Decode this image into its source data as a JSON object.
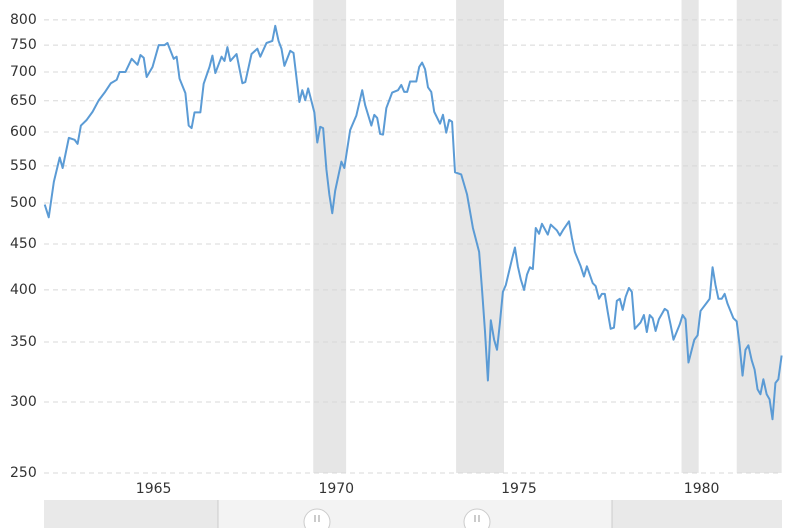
{
  "chart_data": {
    "type": "line",
    "log_y": true,
    "grid": true,
    "xlim": [
      1962.0,
      1982.2
    ],
    "xticks": [
      1965,
      1970,
      1975,
      1980
    ],
    "ylim": [
      250,
      842
    ],
    "yticks": [
      250,
      300,
      350,
      400,
      450,
      500,
      550,
      600,
      650,
      700,
      750,
      800
    ],
    "recession_color": "#e6e6e6",
    "recessions": [
      [
        1969.37,
        1970.27
      ],
      [
        1973.28,
        1974.59
      ],
      [
        1979.45,
        1979.92
      ],
      [
        1980.96,
        1982.19
      ]
    ],
    "series": [
      {
        "color": "#5b9bd5",
        "x": [
          1962.02,
          1962.13,
          1962.27,
          1962.43,
          1962.51,
          1962.68,
          1962.84,
          1962.92,
          1963.01,
          1963.17,
          1963.33,
          1963.5,
          1963.66,
          1963.83,
          1963.99,
          1964.07,
          1964.23,
          1964.4,
          1964.56,
          1964.64,
          1964.73,
          1964.81,
          1964.97,
          1965.14,
          1965.3,
          1965.38,
          1965.55,
          1965.63,
          1965.71,
          1965.87,
          1965.96,
          1966.04,
          1966.12,
          1966.28,
          1966.37,
          1966.53,
          1966.61,
          1966.69,
          1966.86,
          1966.94,
          1967.02,
          1967.1,
          1967.27,
          1967.43,
          1967.51,
          1967.68,
          1967.84,
          1967.92,
          1968.09,
          1968.25,
          1968.33,
          1968.42,
          1968.5,
          1968.58,
          1968.74,
          1968.83,
          1968.99,
          1969.07,
          1969.15,
          1969.23,
          1969.4,
          1969.48,
          1969.56,
          1969.64,
          1969.73,
          1969.81,
          1969.89,
          1969.97,
          1970.14,
          1970.22,
          1970.38,
          1970.55,
          1970.71,
          1970.79,
          1970.96,
          1971.04,
          1971.12,
          1971.2,
          1971.28,
          1971.37,
          1971.53,
          1971.69,
          1971.78,
          1971.86,
          1971.94,
          1972.02,
          1972.19,
          1972.27,
          1972.35,
          1972.43,
          1972.51,
          1972.6,
          1972.68,
          1972.84,
          1972.92,
          1973.01,
          1973.09,
          1973.17,
          1973.25,
          1973.42,
          1973.58,
          1973.74,
          1973.91,
          1973.99,
          1974.07,
          1974.15,
          1974.23,
          1974.32,
          1974.4,
          1974.48,
          1974.56,
          1974.64,
          1974.81,
          1974.89,
          1974.97,
          1975.05,
          1975.14,
          1975.22,
          1975.3,
          1975.38,
          1975.46,
          1975.55,
          1975.63,
          1975.79,
          1975.87,
          1976.04,
          1976.12,
          1976.2,
          1976.37,
          1976.45,
          1976.53,
          1976.69,
          1976.78,
          1976.86,
          1977.02,
          1977.1,
          1977.19,
          1977.27,
          1977.35,
          1977.43,
          1977.51,
          1977.6,
          1977.68,
          1977.76,
          1977.84,
          1977.92,
          1978.01,
          1978.09,
          1978.17,
          1978.33,
          1978.42,
          1978.5,
          1978.58,
          1978.66,
          1978.74,
          1978.83,
          1978.99,
          1979.07,
          1979.15,
          1979.23,
          1979.4,
          1979.48,
          1979.56,
          1979.64,
          1979.8,
          1979.89,
          1979.97,
          1980.14,
          1980.22,
          1980.3,
          1980.38,
          1980.46,
          1980.55,
          1980.63,
          1980.71,
          1980.87,
          1980.96,
          1981.04,
          1981.12,
          1981.2,
          1981.28,
          1981.37,
          1981.45,
          1981.53,
          1981.61,
          1981.69,
          1981.78,
          1981.86,
          1981.94,
          1982.02,
          1982.1,
          1982.19
        ],
        "values": [
          498,
          482,
          528,
          562,
          547,
          591,
          588,
          582,
          610,
          619,
          632,
          651,
          664,
          680,
          686,
          700,
          700,
          724,
          713,
          731,
          726,
          691,
          709,
          750,
          750,
          754,
          724,
          728,
          688,
          663,
          610,
          606,
          631,
          631,
          679,
          709,
          730,
          698,
          728,
          720,
          746,
          720,
          733,
          680,
          682,
          733,
          743,
          728,
          754,
          758,
          788,
          758,
          743,
          711,
          739,
          735,
          648,
          668,
          651,
          671,
          631,
          584,
          608,
          606,
          545,
          511,
          487,
          516,
          556,
          547,
          603,
          626,
          668,
          643,
          610,
          627,
          622,
          597,
          596,
          638,
          664,
          668,
          677,
          665,
          665,
          683,
          683,
          709,
          717,
          705,
          673,
          665,
          632,
          613,
          627,
          599,
          619,
          616,
          541,
          538,
          511,
          469,
          441,
          400,
          360,
          317,
          370,
          352,
          343,
          368,
          398,
          405,
          433,
          446,
          425,
          411,
          400,
          416,
          424,
          422,
          469,
          462,
          474,
          461,
          473,
          466,
          460,
          466,
          477,
          457,
          441,
          425,
          414,
          425,
          407,
          404,
          391,
          396,
          396,
          378,
          362,
          363,
          389,
          391,
          380,
          393,
          402,
          398,
          362,
          368,
          375,
          359,
          375,
          372,
          360,
          371,
          381,
          379,
          366,
          352,
          366,
          375,
          371,
          332,
          352,
          356,
          379,
          387,
          391,
          424,
          405,
          391,
          391,
          396,
          386,
          372,
          369,
          347,
          321,
          343,
          347,
          334,
          326,
          310,
          306,
          318,
          306,
          302,
          287,
          315,
          318,
          338
        ]
      }
    ]
  }
}
